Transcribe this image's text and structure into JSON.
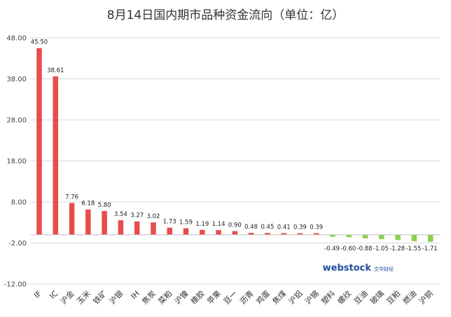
{
  "chart_data": {
    "type": "bar",
    "title": "8月14日国内期市品种资金流向（单位：亿）",
    "categories": [
      "IF",
      "IC",
      "沪金",
      "玉米",
      "铁矿",
      "沪银",
      "IH",
      "焦炭",
      "菜粕",
      "沪镍",
      "橡胶",
      "苹果",
      "豆一",
      "沥青",
      "鸡蛋",
      "焦煤",
      "沪铝",
      "沪锡",
      "塑料",
      "螺纹",
      "豆油",
      "玻璃",
      "豆粕",
      "燃油",
      "沪铜"
    ],
    "values": [
      45.5,
      38.61,
      7.76,
      6.18,
      5.8,
      3.54,
      3.27,
      3.02,
      1.73,
      1.59,
      1.19,
      1.14,
      0.9,
      0.48,
      0.45,
      0.41,
      0.39,
      0.39,
      -0.49,
      -0.6,
      -0.88,
      -1.05,
      -1.28,
      -1.55,
      -1.71
    ],
    "value_labels": [
      "45.50",
      "38.61",
      "7.76",
      "6.18",
      "5.80",
      "3.54",
      "3.27",
      "3.02",
      "1.73",
      "1.59",
      "1.19",
      "1.14",
      "0.90",
      "0.48",
      "0.45",
      "0.41",
      "0.39",
      "0.39",
      "-0.49",
      "-0.60",
      "-0.88",
      "-1.05",
      "-1.28",
      "-1.55",
      "-1.71"
    ],
    "y_ticks": [
      "48.00",
      "38.00",
      "28.00",
      "18.00",
      "8.00",
      "-2.00",
      "-12.00"
    ],
    "ylim": [
      -12,
      48
    ],
    "grid": true,
    "legend": "none",
    "colors": {
      "positive": "#e84c4c",
      "negative": "#8ccf4d"
    }
  },
  "watermark": {
    "brand": "webstock",
    "brand_cn": "文华财经"
  }
}
